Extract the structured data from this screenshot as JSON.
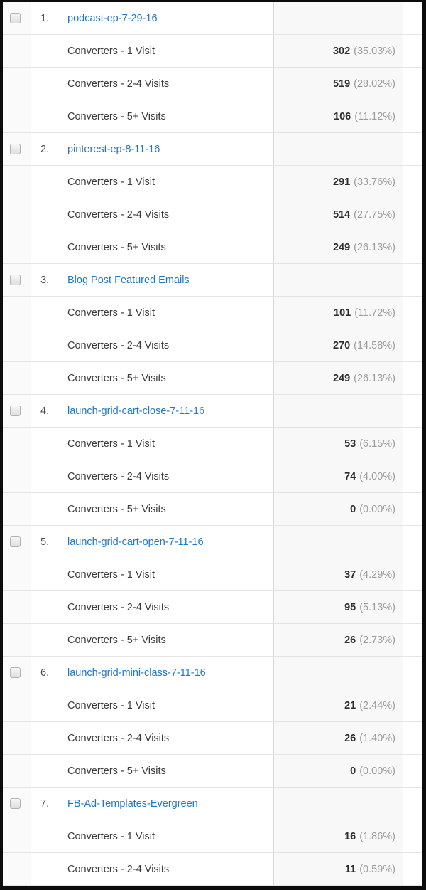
{
  "table": {
    "groups": [
      {
        "rank": "1.",
        "name": "podcast-ep-7-29-16",
        "rows": [
          {
            "label": "Converters - 1 Visit",
            "value": "302",
            "percent": "(35.03%)"
          },
          {
            "label": "Converters - 2-4 Visits",
            "value": "519",
            "percent": "(28.02%)"
          },
          {
            "label": "Converters - 5+ Visits",
            "value": "106",
            "percent": "(11.12%)"
          }
        ]
      },
      {
        "rank": "2.",
        "name": "pinterest-ep-8-11-16",
        "rows": [
          {
            "label": "Converters - 1 Visit",
            "value": "291",
            "percent": "(33.76%)"
          },
          {
            "label": "Converters - 2-4 Visits",
            "value": "514",
            "percent": "(27.75%)"
          },
          {
            "label": "Converters - 5+ Visits",
            "value": "249",
            "percent": "(26.13%)"
          }
        ]
      },
      {
        "rank": "3.",
        "name": "Blog Post Featured Emails",
        "rows": [
          {
            "label": "Converters - 1 Visit",
            "value": "101",
            "percent": "(11.72%)"
          },
          {
            "label": "Converters - 2-4 Visits",
            "value": "270",
            "percent": "(14.58%)"
          },
          {
            "label": "Converters - 5+ Visits",
            "value": "249",
            "percent": "(26.13%)"
          }
        ]
      },
      {
        "rank": "4.",
        "name": "launch-grid-cart-close-7-11-16",
        "rows": [
          {
            "label": "Converters - 1 Visit",
            "value": "53",
            "percent": "(6.15%)"
          },
          {
            "label": "Converters - 2-4 Visits",
            "value": "74",
            "percent": "(4.00%)"
          },
          {
            "label": "Converters - 5+ Visits",
            "value": "0",
            "percent": "(0.00%)"
          }
        ]
      },
      {
        "rank": "5.",
        "name": "launch-grid-cart-open-7-11-16",
        "rows": [
          {
            "label": "Converters - 1 Visit",
            "value": "37",
            "percent": "(4.29%)"
          },
          {
            "label": "Converters - 2-4 Visits",
            "value": "95",
            "percent": "(5.13%)"
          },
          {
            "label": "Converters - 5+ Visits",
            "value": "26",
            "percent": "(2.73%)"
          }
        ]
      },
      {
        "rank": "6.",
        "name": "launch-grid-mini-class-7-11-16",
        "rows": [
          {
            "label": "Converters - 1 Visit",
            "value": "21",
            "percent": "(2.44%)"
          },
          {
            "label": "Converters - 2-4 Visits",
            "value": "26",
            "percent": "(1.40%)"
          },
          {
            "label": "Converters - 5+ Visits",
            "value": "0",
            "percent": "(0.00%)"
          }
        ]
      },
      {
        "rank": "7.",
        "name": "FB-Ad-Templates-Evergreen",
        "rows": [
          {
            "label": "Converters - 1 Visit",
            "value": "16",
            "percent": "(1.86%)"
          },
          {
            "label": "Converters - 2-4 Visits",
            "value": "11",
            "percent": "(0.59%)"
          }
        ]
      }
    ]
  },
  "colors": {
    "link_blue": "#1e77c8",
    "value_text": "#2d2d2d",
    "percent_gray": "#9b9b9b",
    "row_border": "#e4e4e4",
    "value_col_bg": "#f8f8f8",
    "frame_black": "#0c0c0c"
  }
}
